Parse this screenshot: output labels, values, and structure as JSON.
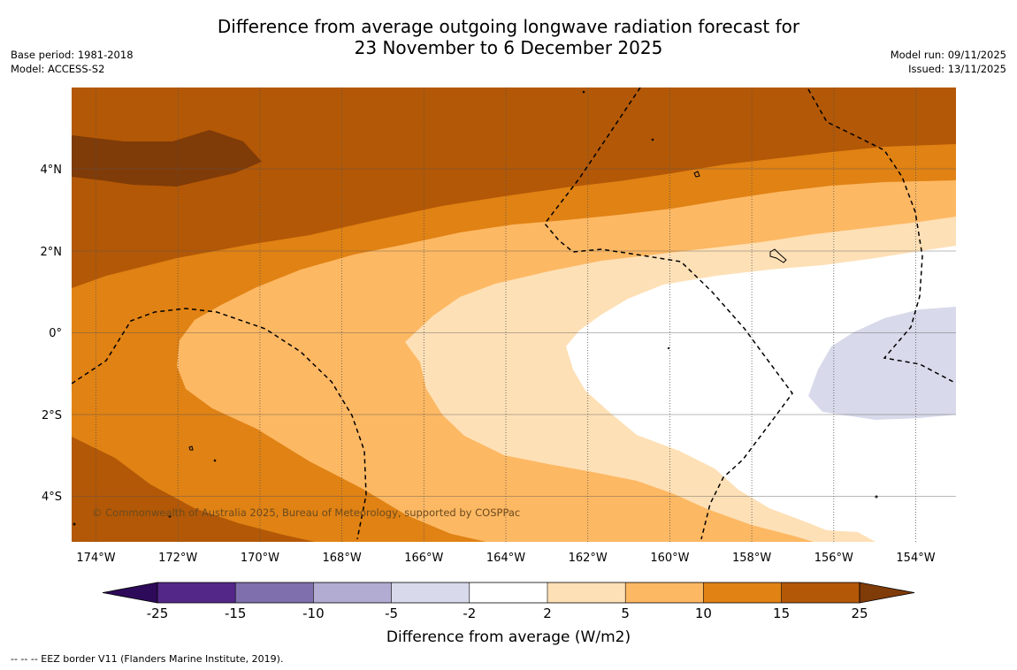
{
  "title": {
    "line1": "Difference from average outgoing longwave radiation forecast for",
    "line2": "23 November to 6 December 2025"
  },
  "meta_left": {
    "base_period": "Base period: 1981-2018",
    "model": "Model: ACCESS-S2"
  },
  "meta_right": {
    "model_run": "Model run: 09/11/2025",
    "issued": "Issued: 13/11/2025"
  },
  "map": {
    "lon_labels": [
      "174°W",
      "172°W",
      "170°W",
      "168°W",
      "166°W",
      "164°W",
      "162°W",
      "160°W",
      "158°W",
      "156°W",
      "154°W"
    ],
    "lat_labels": [
      "4°N",
      "2°N",
      "0°",
      "2°S",
      "4°S"
    ],
    "copyright": "© Commonwealth of Australia 2025, Bureau of Meteorology, supported by COSPPac"
  },
  "colorbar": {
    "title": "Difference from average (W/m2)",
    "tick_labels": [
      "-25",
      "-15",
      "-10",
      "-5",
      "-2",
      "2",
      "5",
      "10",
      "15",
      "25"
    ],
    "colors": [
      "#2e0a5a",
      "#532787",
      "#7f6fac",
      "#b2abd2",
      "#d8daeb",
      "#ffffff",
      "#fee0b6",
      "#fdb863",
      "#e08214",
      "#b35806",
      "#7f3b08"
    ]
  },
  "footer": {
    "legend": "--  --  -- EEZ border V11 (Flanders Marine Institute, 2019)."
  }
}
